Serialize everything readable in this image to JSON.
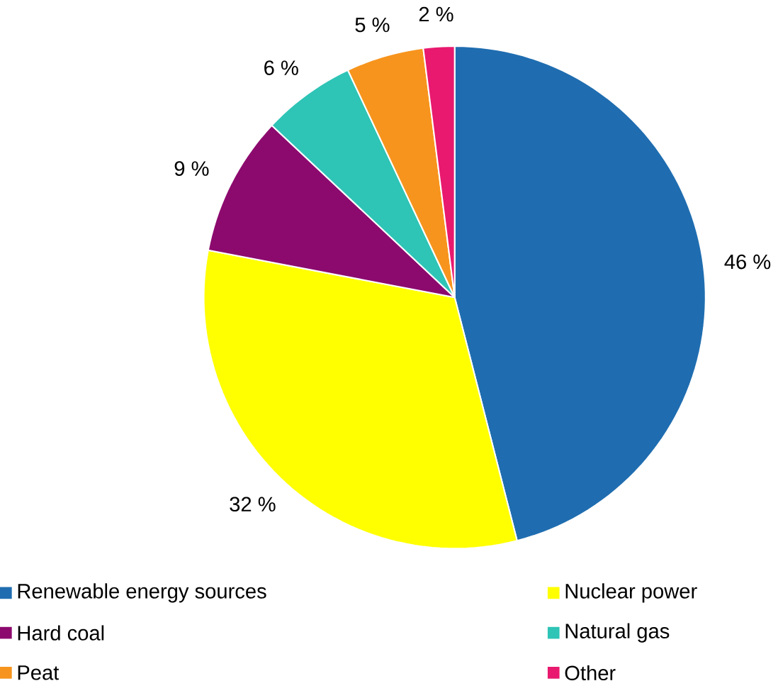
{
  "chart_data": {
    "type": "pie",
    "categories": [
      "Renewable energy sources",
      "Nuclear power",
      "Hard coal",
      "Natural gas",
      "Peat",
      "Other"
    ],
    "values": [
      46,
      32,
      9,
      6,
      5,
      2
    ],
    "colors": [
      "#1f6db0",
      "#ffff00",
      "#8c0a6e",
      "#2ec4b6",
      "#f7941d",
      "#e8196e"
    ],
    "value_labels": [
      "46 %",
      "32 %",
      "9 %",
      "6 %",
      "5 %",
      "2 %"
    ],
    "legend": "bottom"
  }
}
